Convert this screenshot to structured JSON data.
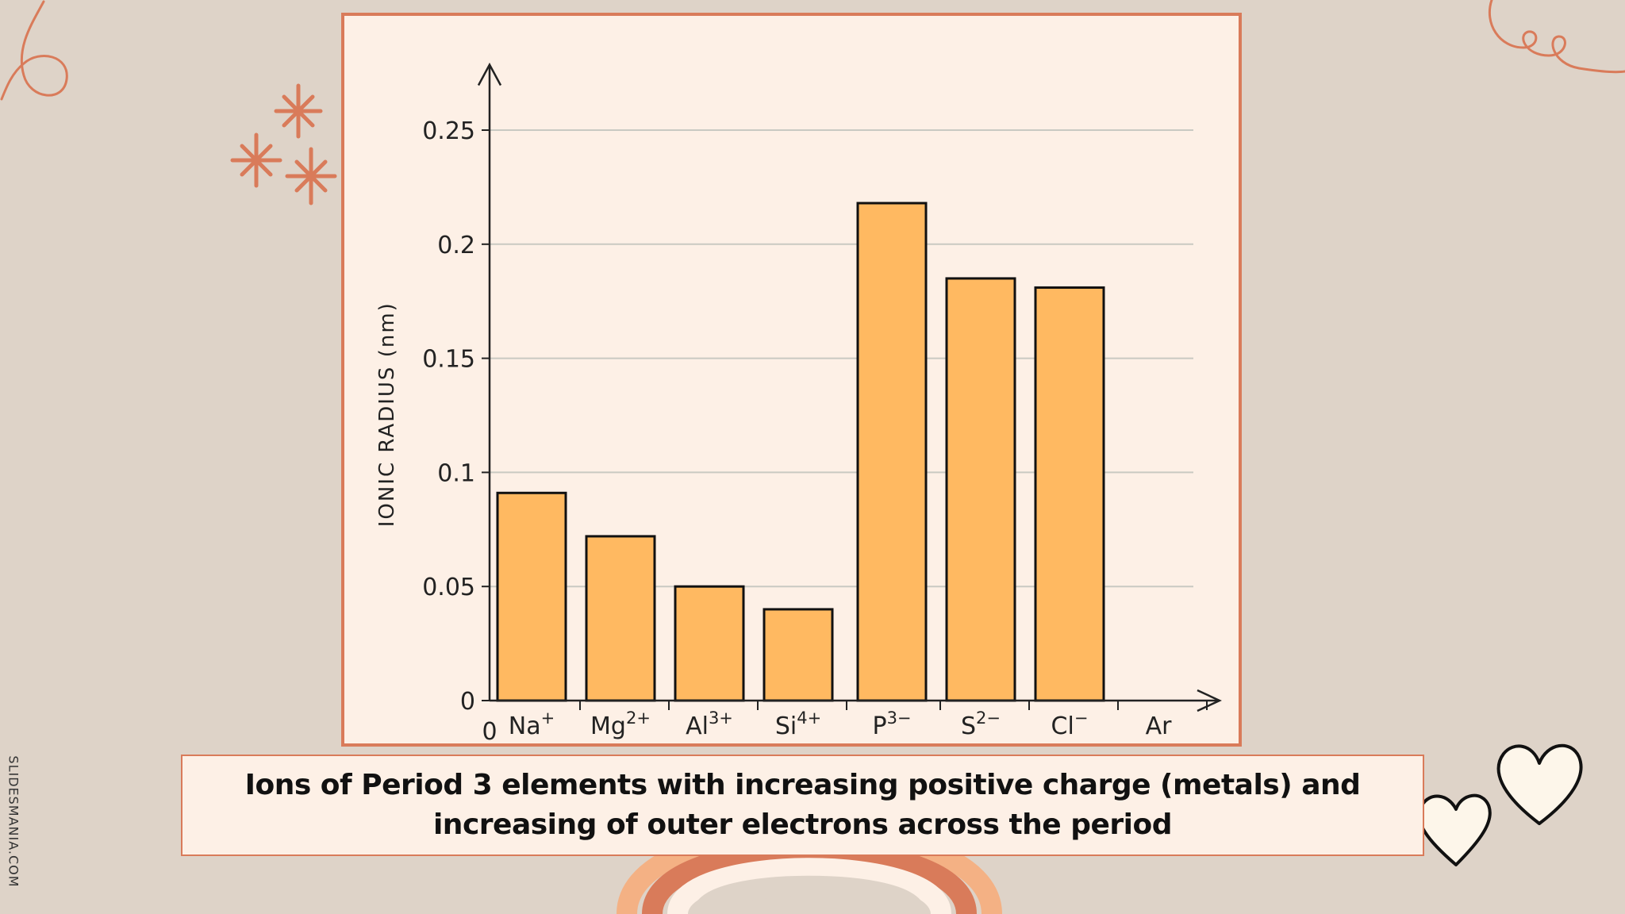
{
  "watermark": "SLIDESMANIA.COM",
  "caption": "Ions of Period 3 elements with increasing positive charge (metals) and increasing of outer electrons across the period",
  "colors": {
    "background": "#ded3c8",
    "panel": "#fdf0e6",
    "accent": "#d97b5a",
    "bar_fill": "#ffb961",
    "bar_stroke": "#111111",
    "grid": "#c9c9c2"
  },
  "chart_data": {
    "type": "bar",
    "ylabel": "IONIC RADIUS (nm)",
    "xlabel": "",
    "origin_label": "0",
    "ylim": [
      0,
      0.27
    ],
    "yticks": [
      {
        "value": 0,
        "label": "0"
      },
      {
        "value": 0.05,
        "label": "0.05"
      },
      {
        "value": 0.1,
        "label": "0.1"
      },
      {
        "value": 0.15,
        "label": "0.15"
      },
      {
        "value": 0.2,
        "label": "0.2"
      },
      {
        "value": 0.25,
        "label": "0.25"
      }
    ],
    "grid": true,
    "categories": [
      {
        "base": "Na",
        "charge": "+"
      },
      {
        "base": "Mg",
        "charge": "2+"
      },
      {
        "base": "Al",
        "charge": "3+"
      },
      {
        "base": "Si",
        "charge": "4+"
      },
      {
        "base": "P",
        "charge": "3−"
      },
      {
        "base": "S",
        "charge": "2−"
      },
      {
        "base": "Cl",
        "charge": "−"
      },
      {
        "base": "Ar",
        "charge": ""
      }
    ],
    "values": [
      0.091,
      0.072,
      0.05,
      0.04,
      0.218,
      0.185,
      0.181,
      null
    ]
  }
}
